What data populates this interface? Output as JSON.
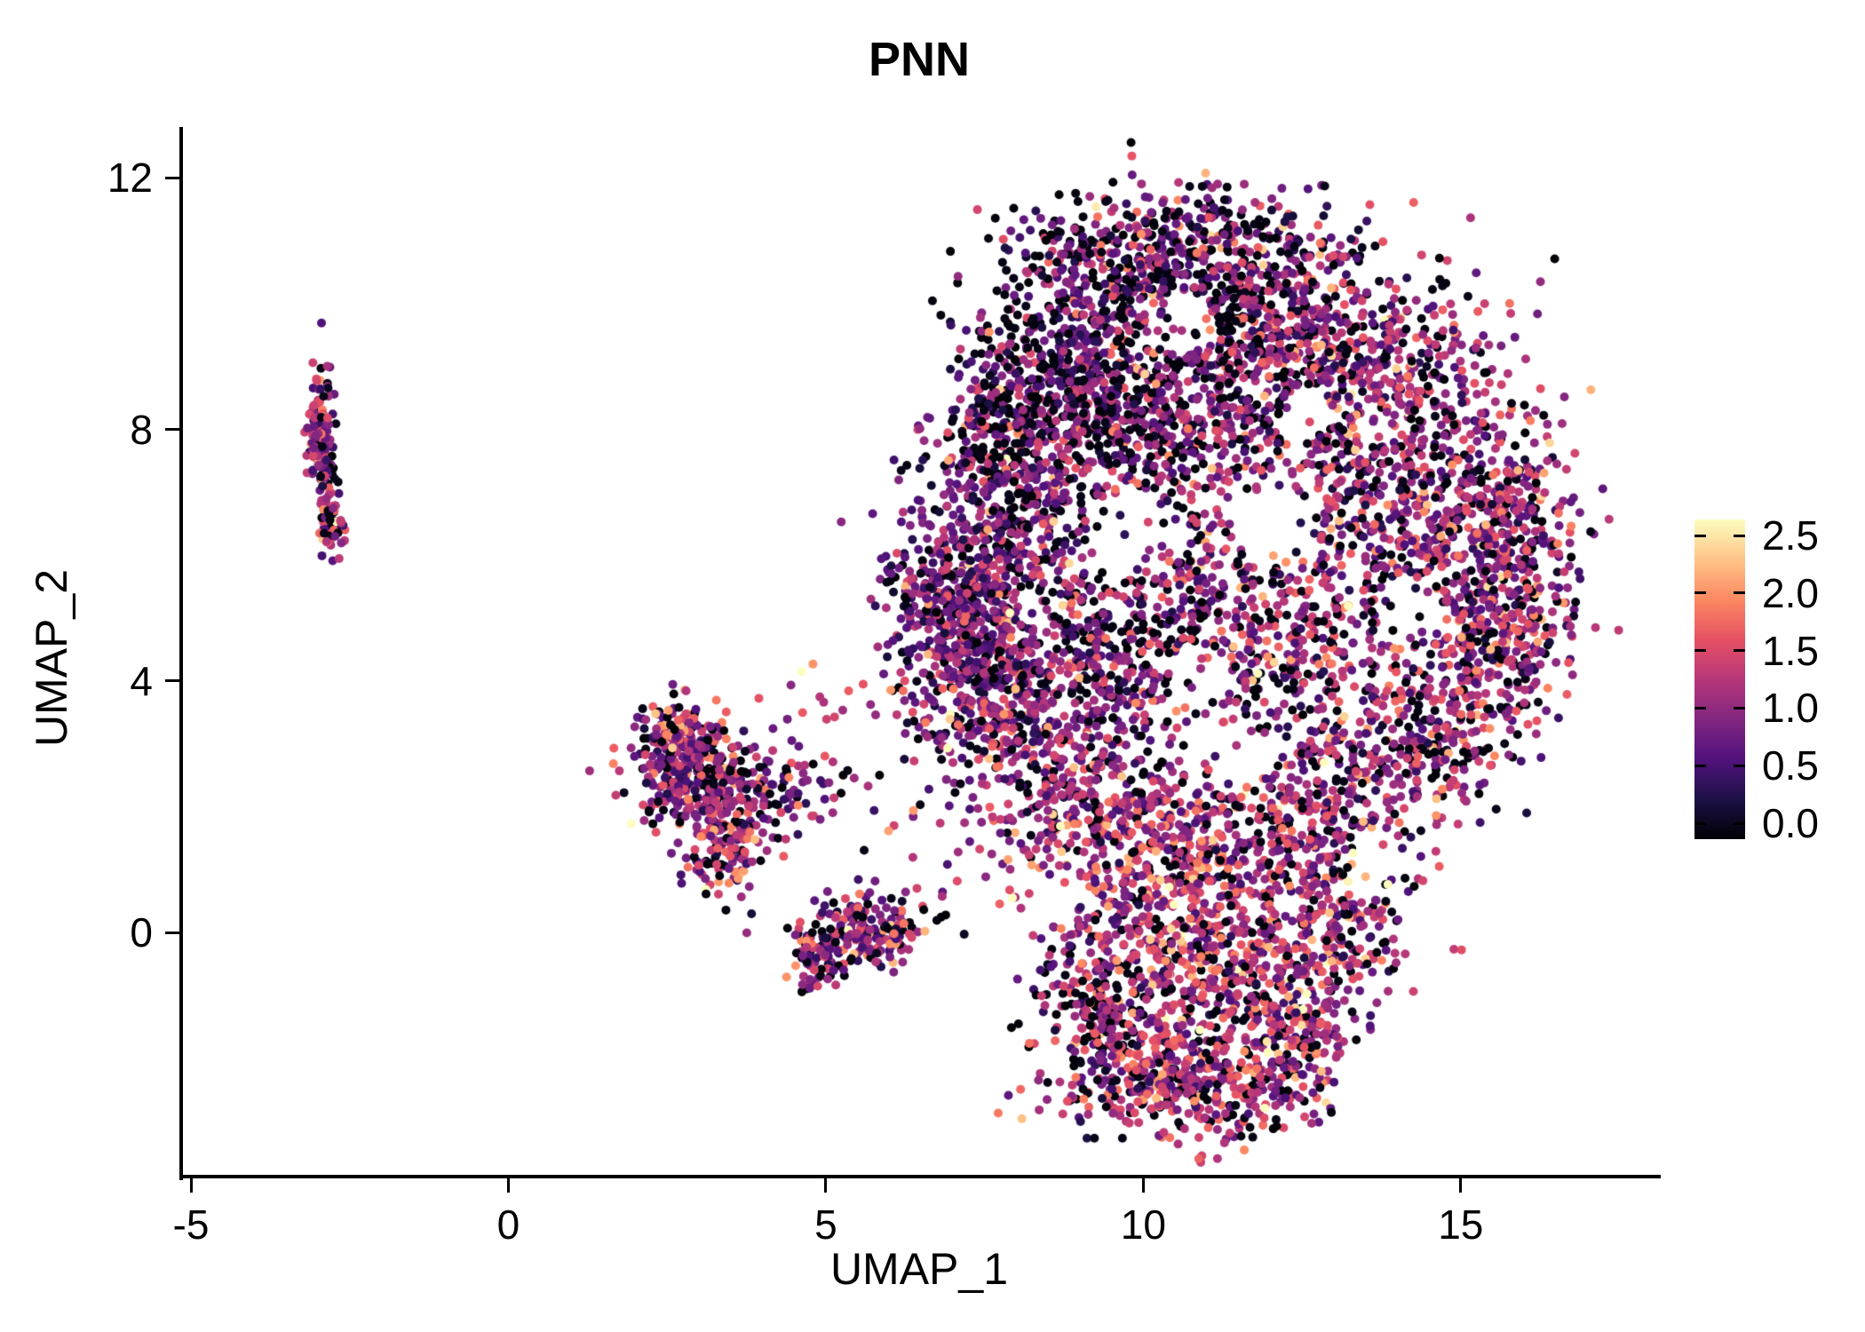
{
  "chart_data": {
    "type": "scatter",
    "title": "PNN",
    "xlabel": "UMAP_1",
    "ylabel": "UMAP_2",
    "xlim": [
      -5.14,
      18.08
    ],
    "ylim": [
      -3.88,
      12.78
    ],
    "grid": false,
    "x_ticks": [
      {
        "value": -5,
        "label": "-5"
      },
      {
        "value": 0,
        "label": "0"
      },
      {
        "value": 5,
        "label": "5"
      },
      {
        "value": 10,
        "label": "10"
      },
      {
        "value": 15,
        "label": "15"
      }
    ],
    "y_ticks": [
      {
        "value": 0,
        "label": "0"
      },
      {
        "value": 4,
        "label": "4"
      },
      {
        "value": 8,
        "label": "8"
      },
      {
        "value": 12,
        "label": "12"
      }
    ],
    "legend": {
      "position": "right",
      "min": 0,
      "max": 2.5,
      "ticks": [
        {
          "value": 0.0,
          "label": "0.0"
        },
        {
          "value": 0.5,
          "label": "0.5"
        },
        {
          "value": 1.0,
          "label": "1.0"
        },
        {
          "value": 1.5,
          "label": "1.5"
        },
        {
          "value": 2.0,
          "label": "2.0"
        },
        {
          "value": 2.5,
          "label": "2.5"
        }
      ],
      "colormap": "magma",
      "stops": [
        {
          "t": 0.0,
          "color": "#000004"
        },
        {
          "t": 0.125,
          "color": "#1d1147"
        },
        {
          "t": 0.25,
          "color": "#51127c"
        },
        {
          "t": 0.375,
          "color": "#822681"
        },
        {
          "t": 0.5,
          "color": "#b73779"
        },
        {
          "t": 0.625,
          "color": "#e65164"
        },
        {
          "t": 0.75,
          "color": "#fc8961"
        },
        {
          "t": 0.875,
          "color": "#fec488"
        },
        {
          "t": 1.0,
          "color": "#fcfdbf"
        }
      ]
    },
    "point_radius": 5,
    "seed": 42,
    "n_points_estimate": 9300,
    "value_distribution": {
      "zero_fraction": 0.25,
      "mean": 1.0,
      "sd": 0.45,
      "max": 2.5
    },
    "clusters": [
      {
        "cx": -2.95,
        "cy": 8.05,
        "sx": 0.1,
        "sy": 0.42,
        "n": 120,
        "zf": 0.25,
        "vm": 1.0,
        "vs": 0.5
      },
      {
        "cx": -2.8,
        "cy": 6.55,
        "sx": 0.1,
        "sy": 0.28,
        "n": 60,
        "zf": 0.2,
        "vm": 1.1,
        "vs": 0.5
      },
      {
        "cx": -2.9,
        "cy": 7.35,
        "sx": 0.08,
        "sy": 0.25,
        "n": 30,
        "zf": 0.25,
        "vm": 1.0,
        "vs": 0.45
      },
      {
        "cx": 2.85,
        "cy": 2.55,
        "sx": 0.5,
        "sy": 0.45,
        "n": 330,
        "zf": 0.18,
        "vm": 1.0,
        "vs": 0.5
      },
      {
        "cx": 3.4,
        "cy": 1.4,
        "sx": 0.35,
        "sy": 0.4,
        "n": 140,
        "zf": 0.18,
        "vm": 1.1,
        "vs": 0.5
      },
      {
        "cx": 4.2,
        "cy": 2.2,
        "sx": 0.55,
        "sy": 0.3,
        "n": 90,
        "zf": 0.2,
        "vm": 0.9,
        "vs": 0.45
      },
      {
        "cx": 2.6,
        "cy": 3.3,
        "sx": 0.25,
        "sy": 0.2,
        "n": 60,
        "zf": 0.15,
        "vm": 1.2,
        "vs": 0.5
      },
      {
        "cx": 5.55,
        "cy": 0.0,
        "sx": 0.45,
        "sy": 0.28,
        "n": 200,
        "zf": 0.2,
        "vm": 1.0,
        "vs": 0.5
      },
      {
        "cx": 4.85,
        "cy": -0.5,
        "sx": 0.18,
        "sy": 0.22,
        "n": 50,
        "zf": 0.3,
        "vm": 1.0,
        "vs": 0.5
      },
      {
        "cx": 6.1,
        "cy": 2.3,
        "sx": 0.7,
        "sy": 1.1,
        "n": 50,
        "zf": 0.2,
        "vm": 1.0,
        "vs": 0.5
      },
      {
        "cx": 5.0,
        "cy": 3.6,
        "sx": 0.5,
        "sy": 0.4,
        "n": 12,
        "zf": 0.1,
        "vm": 1.2,
        "vs": 0.5
      },
      {
        "cx": 7.1,
        "cy": 5.2,
        "sx": 0.55,
        "sy": 0.85,
        "n": 520,
        "zf": 0.12,
        "vm": 0.85,
        "vs": 0.4
      },
      {
        "cx": 7.8,
        "cy": 3.6,
        "sx": 0.6,
        "sy": 0.7,
        "n": 300,
        "zf": 0.15,
        "vm": 0.95,
        "vs": 0.45
      },
      {
        "cx": 8.0,
        "cy": 6.8,
        "sx": 0.6,
        "sy": 0.8,
        "n": 300,
        "zf": 0.25,
        "vm": 0.9,
        "vs": 0.45
      },
      {
        "cx": 8.7,
        "cy": 9.0,
        "sx": 0.8,
        "sy": 1.0,
        "n": 480,
        "zf": 0.38,
        "vm": 0.8,
        "vs": 0.45
      },
      {
        "cx": 10.3,
        "cy": 10.2,
        "sx": 1.0,
        "sy": 0.75,
        "n": 430,
        "zf": 0.3,
        "vm": 0.9,
        "vs": 0.45
      },
      {
        "cx": 12.3,
        "cy": 9.9,
        "sx": 0.9,
        "sy": 0.8,
        "n": 380,
        "zf": 0.28,
        "vm": 0.95,
        "vs": 0.45
      },
      {
        "cx": 9.8,
        "cy": 8.0,
        "sx": 0.8,
        "sy": 0.8,
        "n": 300,
        "zf": 0.33,
        "vm": 0.9,
        "vs": 0.45
      },
      {
        "cx": 11.5,
        "cy": 8.3,
        "sx": 0.9,
        "sy": 0.9,
        "n": 280,
        "zf": 0.25,
        "vm": 1.0,
        "vs": 0.45
      },
      {
        "cx": 14.0,
        "cy": 8.6,
        "sx": 0.9,
        "sy": 0.9,
        "n": 380,
        "zf": 0.22,
        "vm": 1.0,
        "vs": 0.45
      },
      {
        "cx": 15.3,
        "cy": 6.7,
        "sx": 0.75,
        "sy": 0.95,
        "n": 350,
        "zf": 0.2,
        "vm": 1.05,
        "vs": 0.45
      },
      {
        "cx": 15.6,
        "cy": 4.8,
        "sx": 0.6,
        "sy": 0.8,
        "n": 280,
        "zf": 0.18,
        "vm": 1.1,
        "vs": 0.45
      },
      {
        "cx": 14.7,
        "cy": 3.3,
        "sx": 0.6,
        "sy": 0.8,
        "n": 220,
        "zf": 0.2,
        "vm": 1.1,
        "vs": 0.45
      },
      {
        "cx": 13.6,
        "cy": 6.3,
        "sx": 0.9,
        "sy": 1.0,
        "n": 280,
        "zf": 0.22,
        "vm": 1.0,
        "vs": 0.45
      },
      {
        "cx": 10.6,
        "cy": 5.6,
        "sx": 1.1,
        "sy": 1.1,
        "n": 320,
        "zf": 0.25,
        "vm": 1.0,
        "vs": 0.45
      },
      {
        "cx": 12.2,
        "cy": 4.6,
        "sx": 0.9,
        "sy": 0.9,
        "n": 280,
        "zf": 0.22,
        "vm": 1.05,
        "vs": 0.45
      },
      {
        "cx": 9.4,
        "cy": 4.4,
        "sx": 0.8,
        "sy": 0.8,
        "n": 280,
        "zf": 0.25,
        "vm": 1.0,
        "vs": 0.45
      },
      {
        "cx": 9.0,
        "cy": 2.2,
        "sx": 0.8,
        "sy": 0.9,
        "n": 330,
        "zf": 0.2,
        "vm": 1.1,
        "vs": 0.45
      },
      {
        "cx": 10.4,
        "cy": 1.3,
        "sx": 0.9,
        "sy": 0.8,
        "n": 300,
        "zf": 0.18,
        "vm": 1.2,
        "vs": 0.45
      },
      {
        "cx": 12.0,
        "cy": 1.7,
        "sx": 0.9,
        "sy": 0.8,
        "n": 260,
        "zf": 0.2,
        "vm": 1.15,
        "vs": 0.45
      },
      {
        "cx": 13.3,
        "cy": 2.4,
        "sx": 0.7,
        "sy": 0.8,
        "n": 200,
        "zf": 0.2,
        "vm": 1.1,
        "vs": 0.45
      },
      {
        "cx": 10.2,
        "cy": -0.3,
        "sx": 0.9,
        "sy": 0.7,
        "n": 280,
        "zf": 0.2,
        "vm": 1.2,
        "vs": 0.45
      },
      {
        "cx": 11.8,
        "cy": -0.6,
        "sx": 0.8,
        "sy": 0.6,
        "n": 220,
        "zf": 0.18,
        "vm": 1.25,
        "vs": 0.45
      },
      {
        "cx": 13.1,
        "cy": 0.1,
        "sx": 0.6,
        "sy": 0.65,
        "n": 180,
        "zf": 0.2,
        "vm": 1.1,
        "vs": 0.45
      },
      {
        "cx": 9.9,
        "cy": -2.1,
        "sx": 0.75,
        "sy": 0.55,
        "n": 260,
        "zf": 0.22,
        "vm": 1.15,
        "vs": 0.45
      },
      {
        "cx": 11.2,
        "cy": -2.4,
        "sx": 0.75,
        "sy": 0.45,
        "n": 230,
        "zf": 0.18,
        "vm": 1.25,
        "vs": 0.45
      },
      {
        "cx": 12.4,
        "cy": -1.7,
        "sx": 0.55,
        "sy": 0.55,
        "n": 150,
        "zf": 0.2,
        "vm": 1.2,
        "vs": 0.45
      },
      {
        "cx": 9.2,
        "cy": -1.2,
        "sx": 0.4,
        "sy": 0.5,
        "n": 110,
        "zf": 0.25,
        "vm": 1.0,
        "vs": 0.45
      },
      {
        "cx": 16.1,
        "cy": 6.0,
        "sx": 0.3,
        "sy": 0.8,
        "n": 60,
        "zf": 0.2,
        "vm": 1.1,
        "vs": 0.45
      },
      {
        "cx": 7.6,
        "cy": 8.0,
        "sx": 0.5,
        "sy": 0.7,
        "n": 120,
        "zf": 0.35,
        "vm": 0.85,
        "vs": 0.45
      },
      {
        "cx": 9.3,
        "cy": 10.9,
        "sx": 0.6,
        "sy": 0.45,
        "n": 90,
        "zf": 0.3,
        "vm": 0.9,
        "vs": 0.45
      },
      {
        "cx": 11.3,
        "cy": 11.2,
        "sx": 0.7,
        "sy": 0.35,
        "n": 70,
        "zf": 0.3,
        "vm": 0.9,
        "vs": 0.45
      }
    ],
    "holes": [
      {
        "x": 10.6,
        "y": 9.7,
        "rx": 0.55,
        "ry": 0.5
      },
      {
        "x": 9.9,
        "y": 6.3,
        "rx": 0.8,
        "ry": 0.7
      },
      {
        "x": 12.1,
        "y": 6.4,
        "rx": 0.7,
        "ry": 0.6
      },
      {
        "x": 11.2,
        "y": 2.7,
        "rx": 0.6,
        "ry": 0.5
      },
      {
        "x": 14.2,
        "y": 5.2,
        "rx": 0.5,
        "ry": 0.5
      },
      {
        "x": 12.6,
        "y": 8.3,
        "rx": 0.45,
        "ry": 0.4
      },
      {
        "x": 8.7,
        "y": 0.6,
        "rx": 0.45,
        "ry": 0.4
      },
      {
        "x": 13.7,
        "y": 1.2,
        "rx": 0.4,
        "ry": 0.4
      },
      {
        "x": 10.9,
        "y": 4.1,
        "rx": 0.5,
        "ry": 0.4
      }
    ]
  }
}
